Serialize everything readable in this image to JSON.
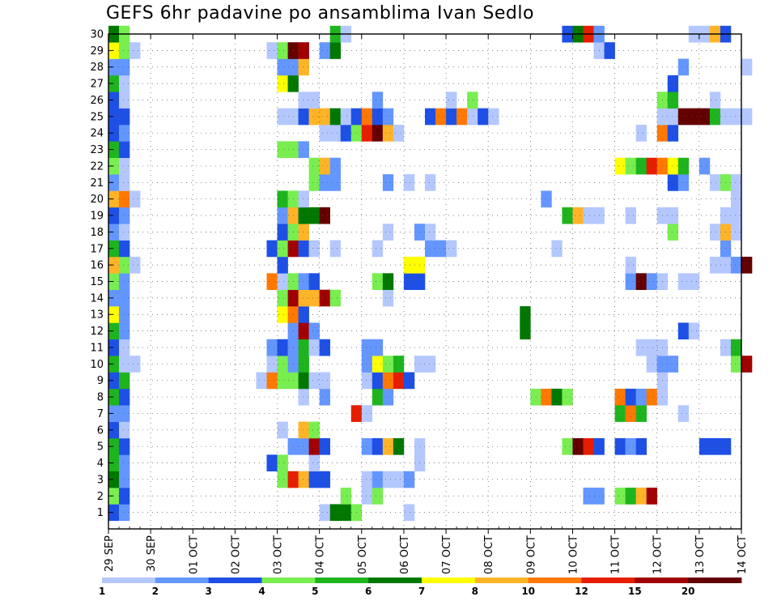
{
  "title": "GEFS 6hr padavine po ansamblima Ivan Sedlo",
  "colors": {
    "c1": "#b4c8ff",
    "c2": "#6496ff",
    "c3": "#1e50e6",
    "c4": "#78ee50",
    "c5": "#1eb41e",
    "c6": "#007800",
    "c7": "#ffff00",
    "c8": "#ffb428",
    "c9": "#ff7800",
    "c10": "#e61e00",
    "c11": "#a00000",
    "c12": "#640000"
  },
  "chart_data": {
    "type": "heatmap",
    "title": "GEFS 6hr padavine po ansamblima Ivan Sedlo",
    "y_labels": [
      "1",
      "2",
      "3",
      "4",
      "5",
      "6",
      "7",
      "8",
      "9",
      "10",
      "11",
      "12",
      "13",
      "14",
      "15",
      "16",
      "17",
      "18",
      "19",
      "20",
      "21",
      "22",
      "23",
      "24",
      "25",
      "26",
      "27",
      "28",
      "29",
      "30"
    ],
    "x_labels": [
      "29 SEP",
      "30 SEP",
      "01 OCT",
      "02 OCT",
      "03 OCT",
      "04 OCT",
      "05 OCT",
      "06 OCT",
      "07 OCT",
      "08 OCT",
      "09 OCT",
      "10 OCT",
      "11 OCT",
      "12 OCT",
      "13 OCT",
      "14 OCT"
    ],
    "x_start": "29 SEP",
    "step": "6hr",
    "steps": 61,
    "ylim": [
      0,
      30
    ],
    "grid": true,
    "colorbar": {
      "labels": [
        "1",
        "2",
        "3",
        "4",
        "5",
        "6",
        "7",
        "8",
        "10",
        "12",
        "15",
        "20"
      ],
      "colors": [
        "c1",
        "c2",
        "c3",
        "c4",
        "c5",
        "c6",
        "c7",
        "c8",
        "c9",
        "c10",
        "c11",
        "c12"
      ]
    },
    "members": {
      "1": [
        [
          1,
          "c3"
        ],
        [
          2,
          "c2"
        ],
        [
          21,
          "c1"
        ],
        [
          22,
          "c6"
        ],
        [
          23,
          "c6"
        ],
        [
          24,
          "c4"
        ],
        [
          29,
          "c1"
        ]
      ],
      "2": [
        [
          1,
          "c4"
        ],
        [
          2,
          "c3"
        ],
        [
          23,
          "c4"
        ],
        [
          25,
          "c1"
        ],
        [
          26,
          "c4"
        ],
        [
          46,
          "c2"
        ],
        [
          47,
          "c2"
        ],
        [
          49,
          "c4"
        ],
        [
          50,
          "c5"
        ],
        [
          51,
          "c8"
        ],
        [
          52,
          "c11"
        ]
      ],
      "3": [
        [
          1,
          "c6"
        ],
        [
          2,
          "c2"
        ],
        [
          17,
          "c4"
        ],
        [
          18,
          "c10"
        ],
        [
          19,
          "c8"
        ],
        [
          20,
          "c3"
        ],
        [
          21,
          "c3"
        ],
        [
          25,
          "c1"
        ],
        [
          26,
          "c2"
        ],
        [
          27,
          "c1"
        ],
        [
          28,
          "c1"
        ],
        [
          29,
          "c2"
        ]
      ],
      "4": [
        [
          1,
          "c5"
        ],
        [
          2,
          "c2"
        ],
        [
          16,
          "c3"
        ],
        [
          17,
          "c4"
        ],
        [
          20,
          "c1"
        ],
        [
          30,
          "c1"
        ]
      ],
      "5": [
        [
          1,
          "c5"
        ],
        [
          2,
          "c3"
        ],
        [
          18,
          "c2"
        ],
        [
          19,
          "c2"
        ],
        [
          20,
          "c11"
        ],
        [
          21,
          "c3"
        ],
        [
          25,
          "c2"
        ],
        [
          26,
          "c3"
        ],
        [
          27,
          "c8"
        ],
        [
          28,
          "c6"
        ],
        [
          30,
          "c1"
        ],
        [
          44,
          "c4"
        ],
        [
          45,
          "c12"
        ],
        [
          46,
          "c10"
        ],
        [
          47,
          "c3"
        ],
        [
          49,
          "c3"
        ],
        [
          50,
          "c2"
        ],
        [
          51,
          "c3"
        ],
        [
          57,
          "c3"
        ],
        [
          58,
          "c3"
        ],
        [
          59,
          "c3"
        ]
      ],
      "6": [
        [
          1,
          "c3"
        ],
        [
          2,
          "c1"
        ],
        [
          17,
          "c1"
        ],
        [
          19,
          "c8"
        ],
        [
          20,
          "c4"
        ]
      ],
      "7": [
        [
          1,
          "c2"
        ],
        [
          2,
          "c2"
        ],
        [
          24,
          "c10"
        ],
        [
          25,
          "c1"
        ],
        [
          49,
          "c5"
        ],
        [
          50,
          "c9"
        ],
        [
          51,
          "c5"
        ],
        [
          55,
          "c1"
        ]
      ],
      "8": [
        [
          1,
          "c5"
        ],
        [
          2,
          "c3"
        ],
        [
          19,
          "c1"
        ],
        [
          21,
          "c2"
        ],
        [
          26,
          "c5"
        ],
        [
          27,
          "c2"
        ],
        [
          41,
          "c4"
        ],
        [
          42,
          "c9"
        ],
        [
          43,
          "c6"
        ],
        [
          44,
          "c4"
        ],
        [
          49,
          "c9"
        ],
        [
          50,
          "c3"
        ],
        [
          51,
          "c2"
        ],
        [
          52,
          "c9"
        ],
        [
          53,
          "c1"
        ]
      ],
      "9": [
        [
          1,
          "c3"
        ],
        [
          2,
          "c5"
        ],
        [
          15,
          "c1"
        ],
        [
          16,
          "c9"
        ],
        [
          17,
          "c4"
        ],
        [
          18,
          "c4"
        ],
        [
          19,
          "c6"
        ],
        [
          20,
          "c1"
        ],
        [
          21,
          "c1"
        ],
        [
          25,
          "c1"
        ],
        [
          26,
          "c3"
        ],
        [
          27,
          "c9"
        ],
        [
          28,
          "c10"
        ],
        [
          29,
          "c3"
        ],
        [
          53,
          "c1"
        ]
      ],
      "10": [
        [
          1,
          "c5"
        ],
        [
          2,
          "c1"
        ],
        [
          3,
          "c1"
        ],
        [
          16,
          "c1"
        ],
        [
          17,
          "c4"
        ],
        [
          18,
          "c2"
        ],
        [
          19,
          "c5"
        ],
        [
          25,
          "c2"
        ],
        [
          26,
          "c7"
        ],
        [
          27,
          "c4"
        ],
        [
          28,
          "c5"
        ],
        [
          30,
          "c1"
        ],
        [
          31,
          "c1"
        ],
        [
          52,
          "c1"
        ],
        [
          53,
          "c2"
        ],
        [
          54,
          "c2"
        ],
        [
          60,
          "c4"
        ],
        [
          61,
          "c11"
        ]
      ],
      "11": [
        [
          1,
          "c3"
        ],
        [
          2,
          "c1"
        ],
        [
          16,
          "c2"
        ],
        [
          17,
          "c3"
        ],
        [
          18,
          "c2"
        ],
        [
          19,
          "c5"
        ],
        [
          20,
          "c1"
        ],
        [
          21,
          "c3"
        ],
        [
          25,
          "c2"
        ],
        [
          26,
          "c2"
        ],
        [
          51,
          "c1"
        ],
        [
          52,
          "c1"
        ],
        [
          53,
          "c1"
        ],
        [
          59,
          "c1"
        ],
        [
          60,
          "c5"
        ]
      ],
      "12": [
        [
          1,
          "c5"
        ],
        [
          2,
          "c2"
        ],
        [
          18,
          "c2"
        ],
        [
          19,
          "c11"
        ],
        [
          20,
          "c2"
        ],
        [
          40,
          "c6"
        ],
        [
          55,
          "c3"
        ],
        [
          56,
          "c1"
        ]
      ],
      "13": [
        [
          1,
          "c7"
        ],
        [
          2,
          "c2"
        ],
        [
          17,
          "c7"
        ],
        [
          18,
          "c9"
        ],
        [
          19,
          "c3"
        ],
        [
          40,
          "c6"
        ]
      ],
      "14": [
        [
          1,
          "c2"
        ],
        [
          2,
          "c2"
        ],
        [
          17,
          "c4"
        ],
        [
          18,
          "c11"
        ],
        [
          19,
          "c8"
        ],
        [
          20,
          "c8"
        ],
        [
          21,
          "c11"
        ],
        [
          22,
          "c4"
        ],
        [
          27,
          "c1"
        ]
      ],
      "15": [
        [
          1,
          "c4"
        ],
        [
          2,
          "c2"
        ],
        [
          16,
          "c9"
        ],
        [
          17,
          "c1"
        ],
        [
          18,
          "c4"
        ],
        [
          19,
          "c2"
        ],
        [
          20,
          "c3"
        ],
        [
          26,
          "c4"
        ],
        [
          27,
          "c6"
        ],
        [
          29,
          "c3"
        ],
        [
          30,
          "c3"
        ],
        [
          50,
          "c2"
        ],
        [
          51,
          "c12"
        ],
        [
          52,
          "c2"
        ],
        [
          53,
          "c1"
        ],
        [
          55,
          "c1"
        ],
        [
          56,
          "c1"
        ]
      ],
      "16": [
        [
          1,
          "c8"
        ],
        [
          2,
          "c4"
        ],
        [
          3,
          "c1"
        ],
        [
          17,
          "c3"
        ],
        [
          29,
          "c7"
        ],
        [
          30,
          "c7"
        ],
        [
          50,
          "c1"
        ],
        [
          58,
          "c1"
        ],
        [
          59,
          "c1"
        ],
        [
          60,
          "c2"
        ],
        [
          61,
          "c12"
        ]
      ],
      "17": [
        [
          1,
          "c5"
        ],
        [
          2,
          "c3"
        ],
        [
          16,
          "c3"
        ],
        [
          17,
          "c4"
        ],
        [
          18,
          "c11"
        ],
        [
          19,
          "c3"
        ],
        [
          20,
          "c1"
        ],
        [
          22,
          "c1"
        ],
        [
          26,
          "c1"
        ],
        [
          31,
          "c2"
        ],
        [
          32,
          "c2"
        ],
        [
          33,
          "c1"
        ],
        [
          43,
          "c1"
        ],
        [
          59,
          "c2"
        ]
      ],
      "18": [
        [
          1,
          "c2"
        ],
        [
          2,
          "c1"
        ],
        [
          17,
          "c3"
        ],
        [
          18,
          "c4"
        ],
        [
          19,
          "c8"
        ],
        [
          27,
          "c1"
        ],
        [
          30,
          "c2"
        ],
        [
          31,
          "c1"
        ],
        [
          54,
          "c4"
        ],
        [
          58,
          "c1"
        ],
        [
          59,
          "c8"
        ],
        [
          60,
          "c1"
        ]
      ],
      "19": [
        [
          1,
          "c3"
        ],
        [
          2,
          "c2"
        ],
        [
          17,
          "c2"
        ],
        [
          18,
          "c8"
        ],
        [
          19,
          "c6"
        ],
        [
          20,
          "c6"
        ],
        [
          21,
          "c12"
        ],
        [
          44,
          "c5"
        ],
        [
          45,
          "c8"
        ],
        [
          46,
          "c1"
        ],
        [
          47,
          "c1"
        ],
        [
          50,
          "c1"
        ],
        [
          53,
          "c1"
        ],
        [
          54,
          "c1"
        ],
        [
          59,
          "c1"
        ],
        [
          60,
          "c1"
        ]
      ],
      "20": [
        [
          1,
          "c8"
        ],
        [
          2,
          "c9"
        ],
        [
          3,
          "c1"
        ],
        [
          17,
          "c5"
        ],
        [
          18,
          "c4"
        ],
        [
          19,
          "c1"
        ],
        [
          42,
          "c2"
        ],
        [
          60,
          "c1"
        ]
      ],
      "21": [
        [
          1,
          "c2"
        ],
        [
          2,
          "c1"
        ],
        [
          20,
          "c4"
        ],
        [
          21,
          "c2"
        ],
        [
          22,
          "c2"
        ],
        [
          27,
          "c2"
        ],
        [
          29,
          "c1"
        ],
        [
          31,
          "c1"
        ],
        [
          54,
          "c3"
        ],
        [
          55,
          "c2"
        ],
        [
          58,
          "c1"
        ],
        [
          59,
          "c4"
        ],
        [
          60,
          "c1"
        ]
      ],
      "22": [
        [
          1,
          "c4"
        ],
        [
          2,
          "c1"
        ],
        [
          20,
          "c4"
        ],
        [
          21,
          "c8"
        ],
        [
          22,
          "c2"
        ],
        [
          49,
          "c7"
        ],
        [
          50,
          "c4"
        ],
        [
          51,
          "c5"
        ],
        [
          52,
          "c10"
        ],
        [
          53,
          "c9"
        ],
        [
          54,
          "c7"
        ],
        [
          55,
          "c5"
        ],
        [
          57,
          "c2"
        ]
      ],
      "23": [
        [
          1,
          "c5"
        ],
        [
          2,
          "c3"
        ],
        [
          17,
          "c4"
        ],
        [
          18,
          "c4"
        ],
        [
          19,
          "c2"
        ]
      ],
      "24": [
        [
          1,
          "c3"
        ],
        [
          2,
          "c2"
        ],
        [
          21,
          "c1"
        ],
        [
          22,
          "c1"
        ],
        [
          23,
          "c3"
        ],
        [
          24,
          "c4"
        ],
        [
          25,
          "c10"
        ],
        [
          26,
          "c12"
        ],
        [
          27,
          "c8"
        ],
        [
          28,
          "c1"
        ],
        [
          51,
          "c1"
        ],
        [
          53,
          "c9"
        ],
        [
          54,
          "c3"
        ]
      ],
      "25": [
        [
          1,
          "c3"
        ],
        [
          2,
          "c3"
        ],
        [
          17,
          "c1"
        ],
        [
          18,
          "c1"
        ],
        [
          19,
          "c3"
        ],
        [
          20,
          "c8"
        ],
        [
          21,
          "c8"
        ],
        [
          22,
          "c6"
        ],
        [
          23,
          "c1"
        ],
        [
          24,
          "c3"
        ],
        [
          25,
          "c9"
        ],
        [
          26,
          "c3"
        ],
        [
          27,
          "c2"
        ],
        [
          31,
          "c3"
        ],
        [
          32,
          "c9"
        ],
        [
          33,
          "c3"
        ],
        [
          34,
          "c9"
        ],
        [
          35,
          "c1"
        ],
        [
          36,
          "c3"
        ],
        [
          37,
          "c1"
        ],
        [
          53,
          "c1"
        ],
        [
          54,
          "c1"
        ],
        [
          55,
          "c12"
        ],
        [
          56,
          "c12"
        ],
        [
          57,
          "c12"
        ],
        [
          58,
          "c5"
        ],
        [
          59,
          "c1"
        ],
        [
          60,
          "c1"
        ],
        [
          61,
          "c1"
        ]
      ],
      "26": [
        [
          1,
          "c3"
        ],
        [
          2,
          "c1"
        ],
        [
          19,
          "c1"
        ],
        [
          20,
          "c1"
        ],
        [
          26,
          "c2"
        ],
        [
          33,
          "c1"
        ],
        [
          35,
          "c4"
        ],
        [
          53,
          "c4"
        ],
        [
          54,
          "c5"
        ],
        [
          58,
          "c1"
        ]
      ],
      "27": [
        [
          1,
          "c5"
        ],
        [
          2,
          "c1"
        ],
        [
          17,
          "c7"
        ],
        [
          18,
          "c6"
        ],
        [
          54,
          "c3"
        ]
      ],
      "28": [
        [
          1,
          "c2"
        ],
        [
          2,
          "c2"
        ],
        [
          17,
          "c2"
        ],
        [
          18,
          "c2"
        ],
        [
          19,
          "c8"
        ],
        [
          55,
          "c2"
        ],
        [
          61,
          "c1"
        ]
      ],
      "29": [
        [
          1,
          "c7"
        ],
        [
          2,
          "c4"
        ],
        [
          3,
          "c1"
        ],
        [
          16,
          "c1"
        ],
        [
          17,
          "c4"
        ],
        [
          18,
          "c12"
        ],
        [
          19,
          "c11"
        ],
        [
          21,
          "c2"
        ],
        [
          22,
          "c6"
        ],
        [
          47,
          "c1"
        ],
        [
          48,
          "c3"
        ]
      ],
      "30": [
        [
          1,
          "c6"
        ],
        [
          2,
          "c4"
        ],
        [
          22,
          "c5"
        ],
        [
          23,
          "c1"
        ],
        [
          44,
          "c3"
        ],
        [
          45,
          "c6"
        ],
        [
          46,
          "c10"
        ],
        [
          47,
          "c2"
        ],
        [
          56,
          "c1"
        ],
        [
          57,
          "c1"
        ],
        [
          58,
          "c8"
        ],
        [
          59,
          "c3"
        ]
      ]
    }
  }
}
